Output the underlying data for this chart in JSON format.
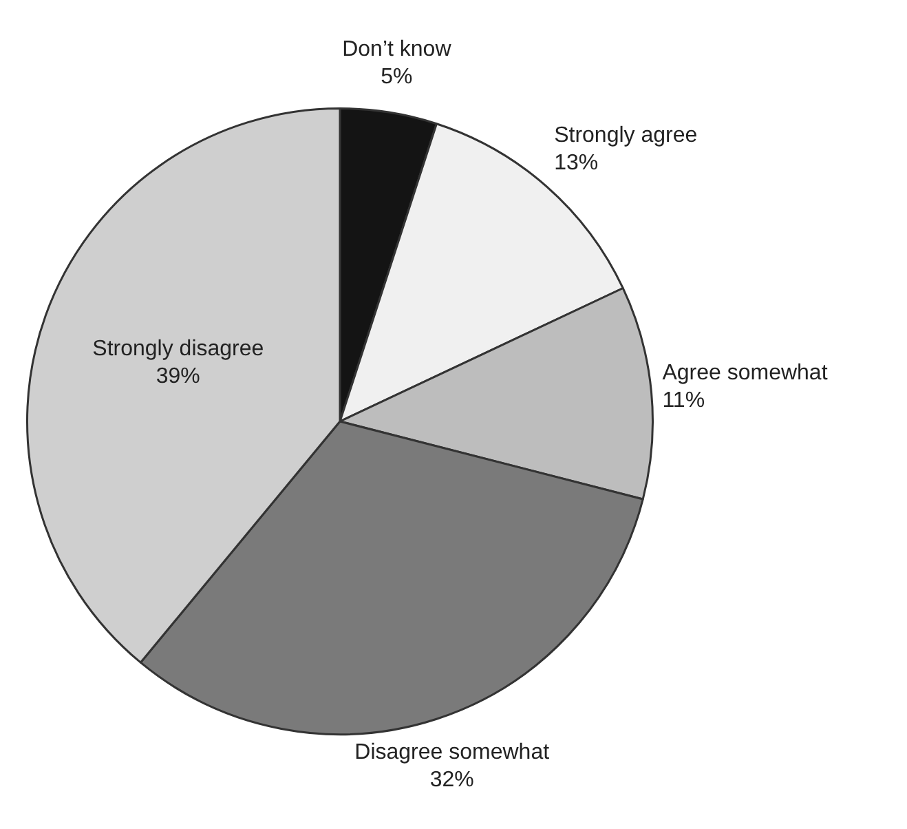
{
  "chart_data": {
    "type": "pie",
    "categories": [
      "Don’t know",
      "Strongly agree",
      "Agree somewhat",
      "Disagree somewhat",
      "Strongly disagree"
    ],
    "values": [
      5,
      13,
      11,
      32,
      39
    ],
    "value_labels": [
      "5%",
      "13%",
      "11%",
      "32%",
      "39%"
    ],
    "colors": [
      "#141414",
      "#f0f0f0",
      "#bdbdbd",
      "#7a7a7a",
      "#cfcfcf"
    ],
    "legend": false
  }
}
